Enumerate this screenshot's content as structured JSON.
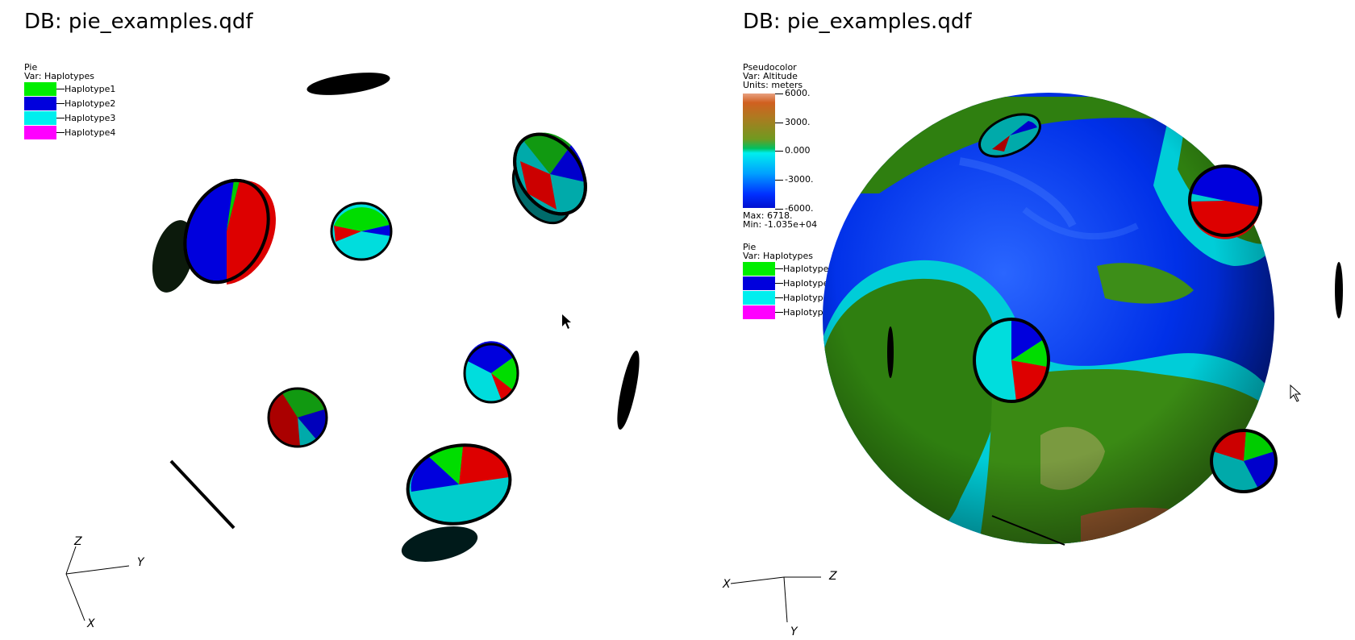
{
  "left_window": {
    "db_title": "DB: pie_examples.qdf",
    "pie_legend": {
      "plot_type": "Pie",
      "var_label": "Var: Haplotypes",
      "entries": [
        {
          "label": "Haplotype1",
          "color": "#00ee00"
        },
        {
          "label": "Haplotype2",
          "color": "#0000dd"
        },
        {
          "label": "Haplotype3",
          "color": "#00eeee"
        },
        {
          "label": "Haplotype4",
          "color": "#ff00ff"
        }
      ]
    },
    "axes": {
      "z": "Z",
      "y": "Y",
      "x": "X"
    }
  },
  "right_window": {
    "db_title": "DB: pie_examples.qdf",
    "pseudocolor_legend": {
      "plot_type": "Pseudocolor",
      "var_label": "Var: Altitude",
      "units_label": "Units: meters",
      "ticks": [
        "6000.",
        "3000.",
        "0.000",
        "-3000.",
        "-6000."
      ],
      "max_label": "Max:  6718.",
      "min_label": "Min: -1.035e+04"
    },
    "pie_legend": {
      "plot_type": "Pie",
      "var_label": "Var: Haplotypes",
      "entries": [
        {
          "label": "Haplotype1",
          "color": "#00ee00"
        },
        {
          "label": "Haplotype2",
          "color": "#0000dd"
        },
        {
          "label": "Haplotype3",
          "color": "#00eeee"
        },
        {
          "label": "Haplotype4",
          "color": "#ff00ff"
        }
      ]
    },
    "axes": {
      "x": "X",
      "z": "Z",
      "y": "Y"
    }
  },
  "colors": {
    "pie_red": "#dd0000",
    "pie_green": "#00dd00",
    "pie_blue": "#0000dd",
    "pie_cyan": "#00dddd",
    "ocean_deep": "#0020ee",
    "land_green": "#2e7d0c"
  }
}
